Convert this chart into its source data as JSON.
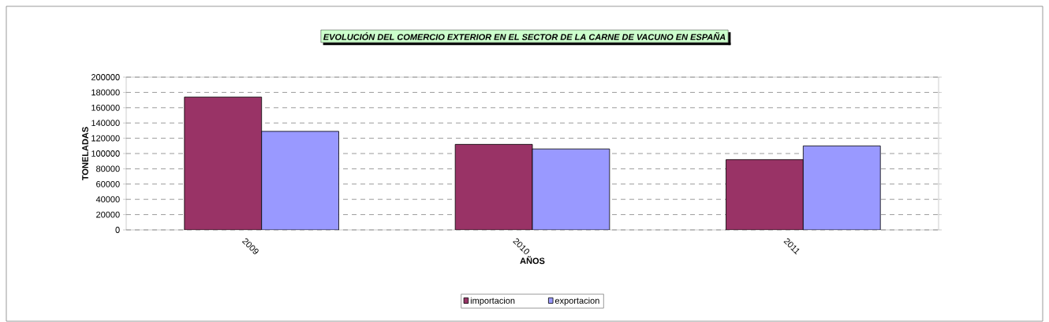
{
  "chart_data": {
    "type": "bar",
    "title": "EVOLUCIÓN DEL COMERCIO EXTERIOR EN EL SECTOR DE LA CARNE DE VACUNO EN ESPAÑA",
    "xlabel": "AÑOS",
    "ylabel": "TONELADAS",
    "categories": [
      "2009",
      "2010",
      "2011"
    ],
    "series": [
      {
        "name": "importacion",
        "color": "#993366",
        "values": [
          174000,
          112000,
          92000
        ]
      },
      {
        "name": "exportacion",
        "color": "#9999ff",
        "values": [
          129000,
          106000,
          110000
        ]
      }
    ],
    "ylim": [
      0,
      200000
    ],
    "yticks": [
      0,
      20000,
      40000,
      60000,
      80000,
      100000,
      120000,
      140000,
      160000,
      180000,
      200000
    ],
    "grid": "y",
    "legend": "bottom"
  }
}
